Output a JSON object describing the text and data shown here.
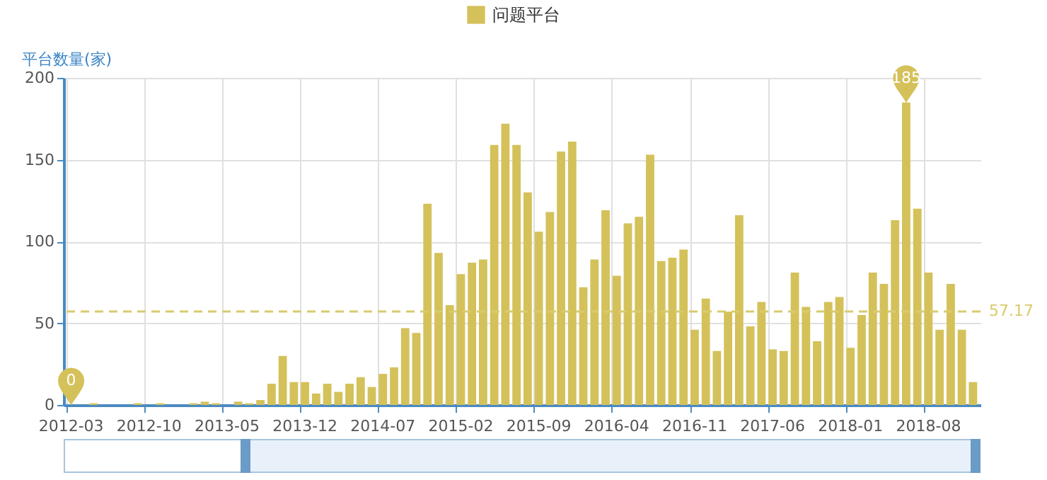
{
  "chart_data": {
    "type": "bar",
    "ylabel": "平台数量(家)",
    "legend": "top",
    "categories": [
      "2012-03",
      null,
      null,
      null,
      null,
      null,
      null,
      "2012-10",
      null,
      null,
      null,
      null,
      null,
      null,
      "2013-05",
      null,
      null,
      null,
      null,
      null,
      null,
      "2013-12",
      null,
      null,
      null,
      null,
      null,
      null,
      "2014-07",
      null,
      null,
      null,
      null,
      null,
      null,
      "2015-02",
      null,
      null,
      null,
      null,
      null,
      null,
      "2015-09",
      null,
      null,
      null,
      null,
      null,
      null,
      "2016-04",
      null,
      null,
      null,
      null,
      null,
      null,
      "2016-11",
      null,
      null,
      null,
      null,
      null,
      null,
      "2017-06",
      null,
      null,
      null,
      null,
      null,
      null,
      "2018-01",
      null,
      null,
      null,
      null,
      null,
      null,
      "2018-08",
      null,
      null,
      null,
      null
    ],
    "series": [
      {
        "name": "问题平台",
        "color": "#d4c15a",
        "values": [
          0,
          0,
          1,
          0,
          0,
          0,
          1,
          0,
          1,
          0,
          0,
          1,
          2,
          1,
          0,
          2,
          1,
          3,
          13,
          30,
          14,
          14,
          7,
          13,
          8,
          13,
          17,
          11,
          19,
          23,
          47,
          44,
          123,
          93,
          61,
          80,
          87,
          89,
          159,
          172,
          159,
          130,
          106,
          118,
          155,
          161,
          72,
          89,
          119,
          79,
          111,
          115,
          153,
          88,
          90,
          95,
          46,
          65,
          33,
          57,
          116,
          48,
          63,
          34,
          33,
          81,
          60,
          39,
          63,
          66,
          35,
          55,
          81,
          74,
          113,
          185,
          120,
          81,
          46,
          74,
          46,
          14
        ],
        "value_labels": [
          "0",
          null,
          null,
          null,
          null,
          null,
          null,
          null,
          null,
          null,
          null,
          null,
          null,
          null,
          null,
          null,
          null,
          null,
          null,
          null,
          null,
          null,
          null,
          null,
          null,
          null,
          null,
          null,
          null,
          null,
          null,
          null,
          null,
          null,
          null,
          null,
          null,
          null,
          null,
          null,
          null,
          null,
          null,
          null,
          null,
          null,
          null,
          null,
          null,
          null,
          null,
          null,
          null,
          null,
          null,
          null,
          null,
          null,
          null,
          null,
          null,
          null,
          null,
          null,
          null,
          null,
          null,
          null,
          null,
          null,
          null,
          null,
          null,
          null,
          null,
          "185",
          null,
          null,
          null,
          null,
          null,
          null
        ]
      }
    ],
    "ylim": [
      0,
      200
    ],
    "yticks": [
      0,
      50,
      100,
      150,
      200
    ],
    "grid": true,
    "ref_lines": [
      {
        "axis": "y",
        "value": 57.17,
        "label": "57.17",
        "color": "#d9cb6e",
        "line_style": "dashed"
      }
    ]
  }
}
